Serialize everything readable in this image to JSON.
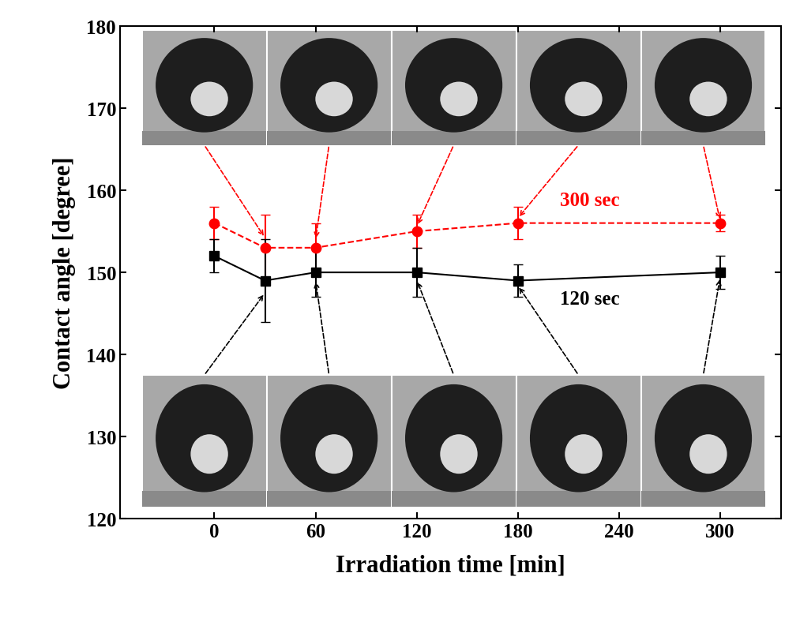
{
  "chart_data": {
    "type": "line",
    "x_label": "Irradiation time [min]",
    "y_label": "Contact angle [degree]",
    "x": [
      0,
      30,
      60,
      120,
      180,
      300
    ],
    "series": [
      {
        "name": "300 sec",
        "color": "#ff0000",
        "marker": "o",
        "line_style": "dashed",
        "values": [
          156,
          153,
          153,
          155,
          156,
          156
        ],
        "error": [
          2,
          4,
          3,
          2,
          2,
          1
        ]
      },
      {
        "name": "120 sec",
        "color": "#000000",
        "marker": "s",
        "line_style": "solid",
        "values": [
          152,
          149,
          150,
          150,
          149,
          150
        ],
        "error": [
          2,
          5,
          3,
          3,
          2,
          2
        ]
      }
    ],
    "xlim": [
      -56,
      336
    ],
    "xticks": [
      0,
      60,
      120,
      180,
      240,
      300
    ],
    "ylim": [
      120,
      180
    ],
    "yticks": [
      120,
      130,
      140,
      150,
      160,
      170,
      180
    ],
    "grid": false
  }
}
